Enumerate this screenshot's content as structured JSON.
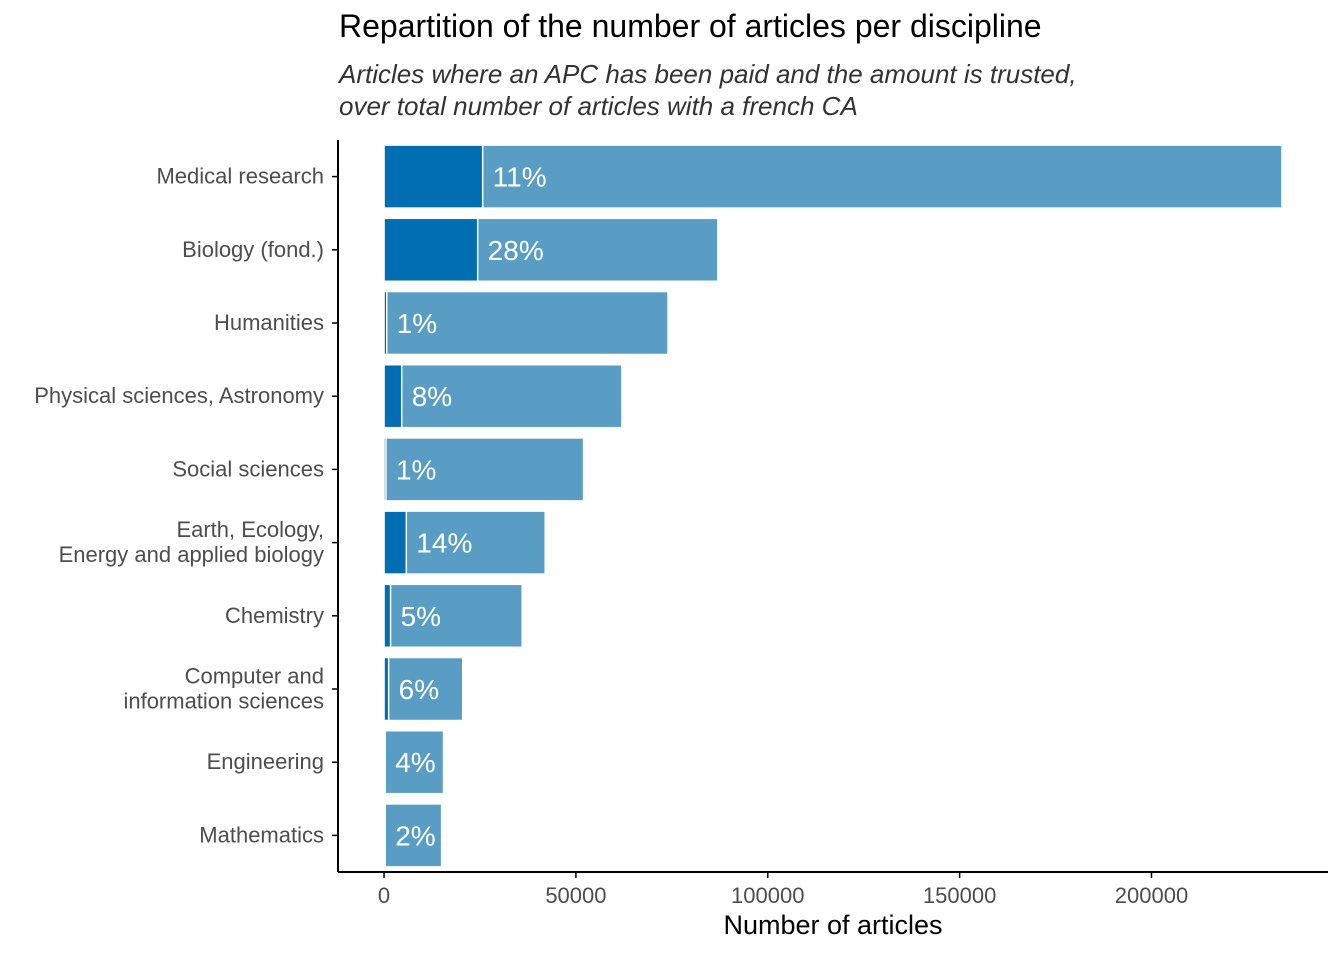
{
  "title": "Repartition of the number of articles per discipline",
  "subtitle_lines": [
    "Articles where an APC has been paid and the amount is trusted,",
    "over total number of articles with a french CA"
  ],
  "colors": {
    "total_bar": "#5a9dc4",
    "apc_bar": "#006eb0",
    "label_text": "#ffffff",
    "axis": "#000000",
    "tick_label": "#4d4d4d"
  },
  "chart_data": {
    "type": "bar",
    "orientation": "horizontal",
    "stacked_overlay": true,
    "title": "Repartition of the number of articles per discipline",
    "xlabel": "Number of articles",
    "ylabel": "",
    "xlim": [
      -12000,
      246000
    ],
    "xticks": [
      0,
      50000,
      100000,
      150000,
      200000
    ],
    "xtick_labels": [
      "0",
      "50000",
      "100000",
      "150000",
      "200000"
    ],
    "categories": [
      [
        "Medical research"
      ],
      [
        "Biology (fond.)"
      ],
      [
        "Humanities"
      ],
      [
        "Physical sciences, Astronomy"
      ],
      [
        "Social sciences"
      ],
      [
        "Earth, Ecology,",
        "Energy and applied biology"
      ],
      [
        "Chemistry"
      ],
      [
        "Computer and",
        "information sciences"
      ],
      [
        "Engineering"
      ],
      [
        "Mathematics"
      ]
    ],
    "series": [
      {
        "role": "total",
        "values": [
          234000,
          87000,
          74000,
          62000,
          52000,
          42000,
          36000,
          20500,
          15500,
          15000
        ]
      },
      {
        "role": "apc",
        "values": [
          25700,
          24400,
          700,
          4600,
          500,
          5800,
          1700,
          1200,
          300,
          300
        ]
      }
    ],
    "data_labels": [
      "11%",
      "28%",
      "1%",
      "8%",
      "1%",
      "14%",
      "5%",
      "6%",
      "4%",
      "2%"
    ],
    "grid": false
  }
}
